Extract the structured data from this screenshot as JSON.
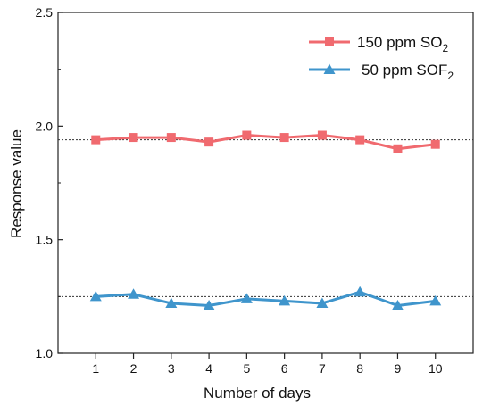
{
  "chart_data": {
    "type": "line",
    "xlabel": "Number of days",
    "ylabel": "Response value",
    "xlim": [
      0,
      11
    ],
    "ylim": [
      1.0,
      2.5
    ],
    "xticks": [
      "1",
      "2",
      "3",
      "4",
      "5",
      "6",
      "7",
      "8",
      "9",
      "10"
    ],
    "yticks": [
      "1.0",
      "1.5",
      "2.0",
      "2.5"
    ],
    "grid": false,
    "legend_position": "top-right",
    "x": [
      1,
      2,
      3,
      4,
      5,
      6,
      7,
      8,
      9,
      10
    ],
    "series": [
      {
        "name": "150 ppm SO",
        "name_subscript": "2",
        "marker": "square",
        "color": "#f06a6f",
        "values": [
          1.94,
          1.95,
          1.95,
          1.93,
          1.96,
          1.95,
          1.96,
          1.94,
          1.9,
          1.92
        ]
      },
      {
        "name": "50 ppm SOF",
        "name_subscript": "2",
        "marker": "triangle",
        "color": "#3f95cc",
        "values": [
          1.25,
          1.26,
          1.22,
          1.21,
          1.24,
          1.23,
          1.22,
          1.27,
          1.21,
          1.23
        ]
      }
    ],
    "reference_lines": [
      {
        "y": 1.94,
        "style": "dotted",
        "color": "#333333"
      },
      {
        "y": 1.25,
        "style": "dotted",
        "color": "#333333"
      }
    ]
  }
}
